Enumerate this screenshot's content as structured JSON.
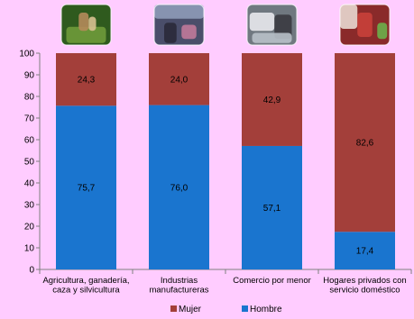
{
  "chart_data": {
    "type": "bar",
    "stacked": true,
    "categories": [
      [
        "Agricultura, ganadería,",
        "caza y silvicultura"
      ],
      [
        "Industrias",
        "manufactureras"
      ],
      [
        "Comercio por menor"
      ],
      [
        "Hogares privados con",
        "servicio doméstico"
      ]
    ],
    "category_icons": [
      "farm-workers-photo",
      "factory-workers-photo",
      "retail-workers-photo",
      "domestic-worker-photo"
    ],
    "series": [
      {
        "name": "Hombre",
        "color": "#1a75cf",
        "values": [
          75.7,
          76.0,
          57.1,
          17.4
        ],
        "labels": [
          "75,7",
          "76,0",
          "57,1",
          "17,4"
        ]
      },
      {
        "name": "Mujer",
        "color": "#a33f3a",
        "values": [
          24.3,
          24.0,
          42.9,
          82.6
        ],
        "labels": [
          "24,3",
          "24,0",
          "42,9",
          "82,6"
        ]
      }
    ],
    "legend_order": [
      "Mujer",
      "Hombre"
    ],
    "ylim": [
      0,
      100
    ],
    "yticks": [
      0,
      10,
      20,
      30,
      40,
      50,
      60,
      70,
      80,
      90,
      100
    ],
    "legend_position": "bottom",
    "grid": false
  }
}
